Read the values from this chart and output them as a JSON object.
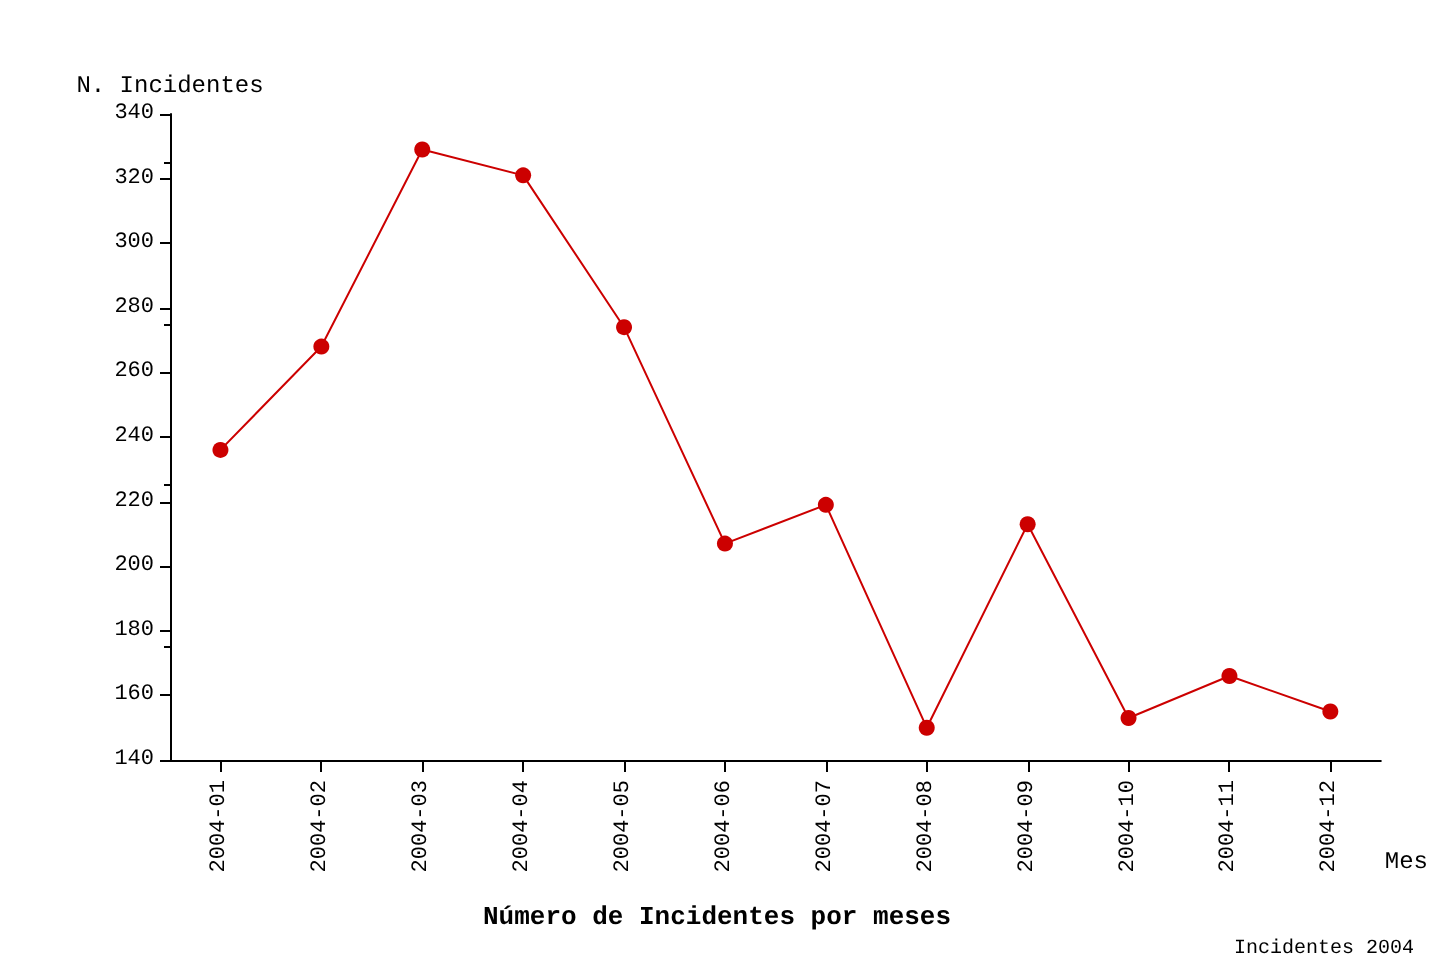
{
  "chart_data": {
    "type": "line",
    "title": "Número de Incidentes por meses",
    "xlabel": "Mes",
    "ylabel": "N. Incidentes",
    "annotations": [
      "Incidentes 2004"
    ],
    "categories": [
      "2004-01",
      "2004-02",
      "2004-03",
      "2004-04",
      "2004-05",
      "2004-06",
      "2004-07",
      "2004-08",
      "2004-09",
      "2004-10",
      "2004-11",
      "2004-12"
    ],
    "series": [
      {
        "color": "#cc0000",
        "values": [
          236,
          268,
          329,
          321,
          274,
          207,
          219,
          150,
          213,
          153,
          166,
          155
        ]
      }
    ],
    "ylim": [
      140,
      340
    ],
    "yticks": [
      140,
      160,
      180,
      200,
      220,
      240,
      260,
      280,
      300,
      320,
      340
    ],
    "marker": "circle",
    "line_style": "solid"
  }
}
